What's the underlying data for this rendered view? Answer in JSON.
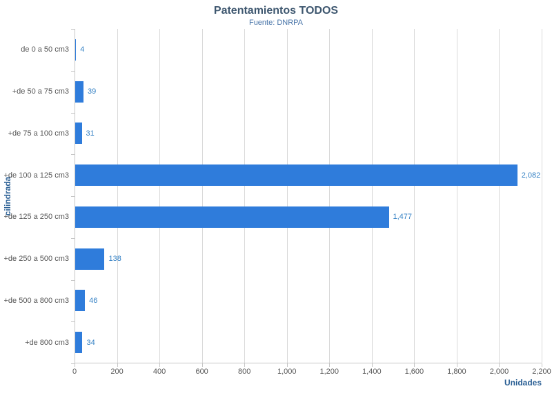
{
  "chart_data": {
    "type": "bar",
    "orientation": "horizontal",
    "title": "Patentamientos TODOS",
    "subtitle": "Fuente: DNRPA",
    "xlabel": "Unidades",
    "ylabel": "cilindrada",
    "categories": [
      "de 0 a 50 cm3",
      "+de 50 a 75 cm3",
      "+de 75 a 100 cm3",
      "+de 100 a 125 cm3",
      "+de 125 a 250 cm3",
      "+de 250 a 500 cm3",
      "+de 500 a 800 cm3",
      "+de 800 cm3"
    ],
    "values": [
      4,
      39,
      31,
      2082,
      1477,
      138,
      46,
      34
    ],
    "value_labels": [
      "4",
      "39",
      "31",
      "2,082",
      "1,477",
      "138",
      "46",
      "34"
    ],
    "xlim": [
      0,
      2200
    ],
    "xticks": {
      "values": [
        0,
        200,
        400,
        600,
        800,
        1000,
        1200,
        1400,
        1600,
        1800,
        2000,
        2200
      ],
      "labels": [
        "0",
        "200",
        "400",
        "600",
        "800",
        "1,000",
        "1,200",
        "1,400",
        "1,600",
        "1,800",
        "2,000",
        "2,200"
      ]
    },
    "grid": "vertical-gridlines",
    "legend": "none",
    "colors": {
      "bar": "#2f7cdb",
      "data_label": "#3380c4",
      "title": "#3e576f",
      "subtitle": "#4572a7",
      "axis_title": "#2a5f94",
      "tick_label": "#555555",
      "category_label": "#555555",
      "gridline": "#d9d9d9",
      "axis_line": "#c6c6c6",
      "background": "#ffffff"
    }
  }
}
